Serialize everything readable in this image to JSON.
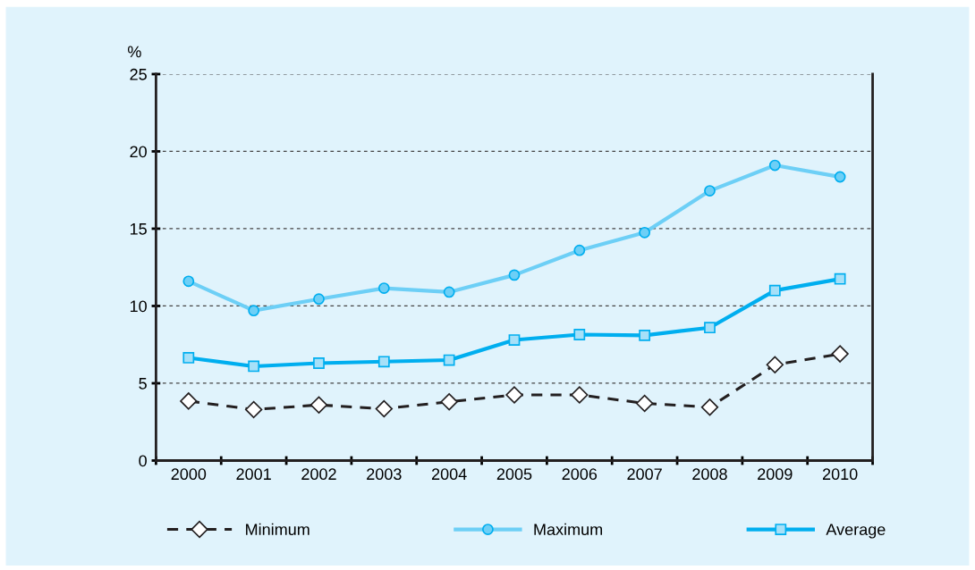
{
  "chart_data": {
    "type": "line",
    "ylabel": "%",
    "categories": [
      "2000",
      "2001",
      "2002",
      "2003",
      "2004",
      "2005",
      "2006",
      "2007",
      "2008",
      "2009",
      "2010"
    ],
    "series": [
      {
        "name": "Minimum",
        "color": "#231f20",
        "marker": "diamond",
        "line_style": "dashed",
        "values": [
          3.85,
          3.3,
          3.6,
          3.35,
          3.8,
          4.25,
          4.25,
          3.7,
          3.45,
          6.2,
          6.9
        ]
      },
      {
        "name": "Maximum",
        "color": "#6dcff6",
        "marker": "circle",
        "line_style": "solid",
        "values": [
          11.6,
          9.7,
          10.45,
          11.15,
          10.9,
          12.0,
          13.6,
          14.75,
          17.45,
          19.1,
          18.35
        ]
      },
      {
        "name": "Average",
        "color": "#00aeef",
        "marker": "square",
        "line_style": "solid",
        "values": [
          6.65,
          6.1,
          6.3,
          6.4,
          6.5,
          7.8,
          8.15,
          8.1,
          8.6,
          11.0,
          11.75
        ]
      }
    ],
    "ylim": [
      0,
      25
    ],
    "yticks": [
      0,
      5,
      10,
      15,
      20,
      25
    ],
    "grid": "y",
    "legend": "bottom"
  }
}
